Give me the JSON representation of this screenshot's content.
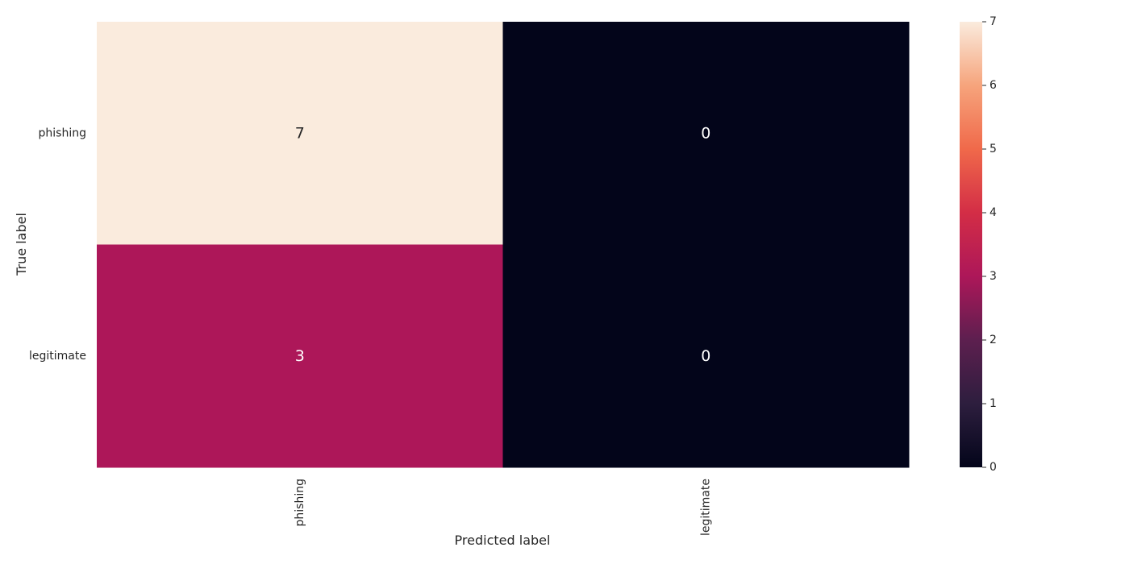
{
  "chart_data": {
    "type": "heatmap",
    "title": "",
    "xlabel": "Predicted label",
    "ylabel": "True label",
    "x_categories": [
      "phishing",
      "legitimate"
    ],
    "y_categories": [
      "phishing",
      "legitimate"
    ],
    "values": [
      [
        7,
        0
      ],
      [
        3,
        0
      ]
    ],
    "colormap": "rocket",
    "colorbar": {
      "range": [
        0,
        7
      ],
      "ticks": [
        "0",
        "1",
        "2",
        "3",
        "4",
        "5",
        "6",
        "7"
      ]
    },
    "grid": false
  }
}
